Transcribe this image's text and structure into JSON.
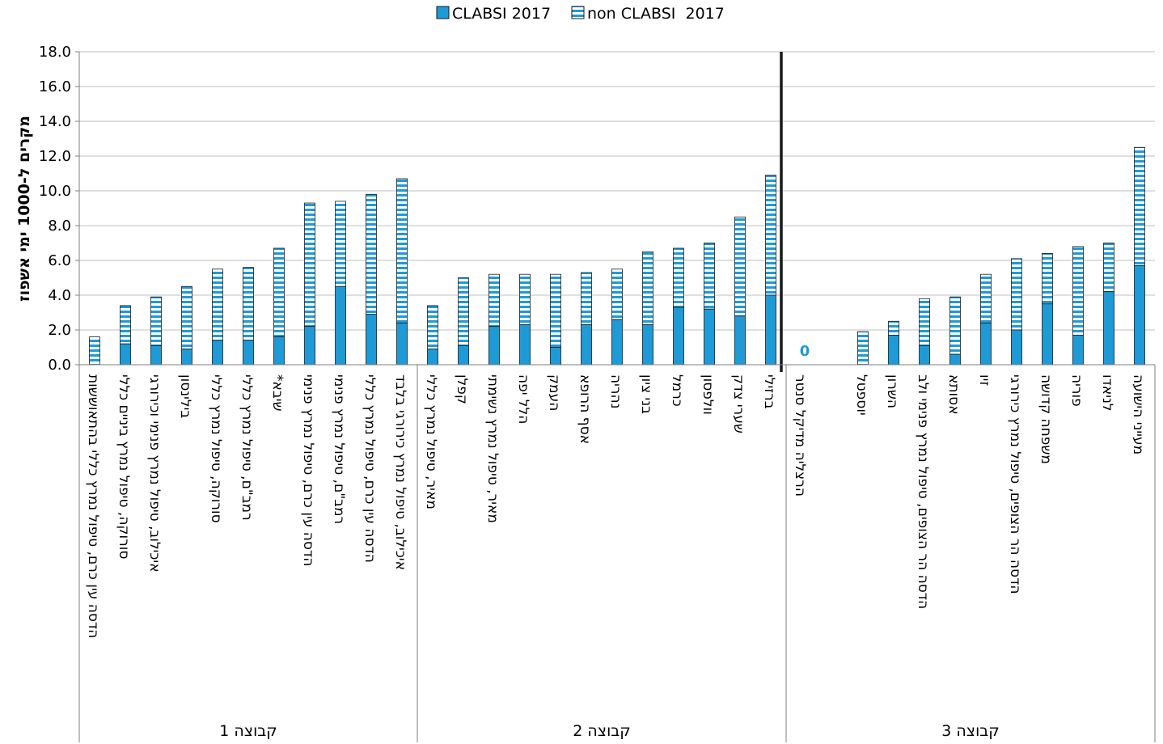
{
  "chart_data": {
    "type": "bar",
    "stacked": true,
    "ylabel": "מקרים ל-1000 ימי אשפוז",
    "ylim": [
      0,
      18
    ],
    "y_ticks": [
      "0.0",
      "2.0",
      "4.0",
      "6.0",
      "8.0",
      "10.0",
      "12.0",
      "14.0",
      "16.0",
      "18.0"
    ],
    "grid": true,
    "legend_position": "top",
    "colors": {
      "clabsi": "#1e9ad6",
      "non_clabsi_stripe": "#1e9ad6",
      "grid": "#bfbfbf",
      "divider": "#1a1a1a",
      "zero_label": "#1e9ad6"
    },
    "series": [
      {
        "name": "CLABSI 2017"
      },
      {
        "name": "non CLABSI  2017"
      }
    ],
    "groups": [
      {
        "label": "קבוצה 1",
        "categories": [
          {
            "name": "הדסה עין כרם, טיפול נמרץ כללי בהתאוששות",
            "clabsi": 0.0,
            "total": 1.6
          },
          {
            "name": "סורוקה, טיפול נמרץ ביניים כללי",
            "clabsi": 1.2,
            "total": 3.4
          },
          {
            "name": "איכילוב, טיפול נמרץ פנימי וכירורגי",
            "clabsi": 1.1,
            "total": 3.9
          },
          {
            "name": "בילינסון",
            "clabsi": 0.9,
            "total": 4.5
          },
          {
            "name": "סורוקה, טיפול נמרץ כללי",
            "clabsi": 1.4,
            "total": 5.5
          },
          {
            "name": "רמב\"ם, טיפול נמרץ כללי",
            "clabsi": 1.4,
            "total": 5.6
          },
          {
            "name": "שיבא*",
            "clabsi": 1.6,
            "total": 6.7
          },
          {
            "name": "הדסה עין כרם, טיפול נמרץ פנימי",
            "clabsi": 2.2,
            "total": 9.3
          },
          {
            "name": "רמב\"ם, טיפול נמרץ פנימי",
            "clabsi": 4.5,
            "total": 9.4
          },
          {
            "name": "הדסה עין כרם, טיפול נמרץ כללי",
            "clabsi": 2.9,
            "total": 9.8
          },
          {
            "name": "איכילוב, טיפול נמרץ כירורגי בלבד",
            "clabsi": 2.4,
            "total": 10.7
          }
        ]
      },
      {
        "label": "קבוצה 2",
        "categories": [
          {
            "name": "מאיר, טיפול נמרץ כללי",
            "clabsi": 0.9,
            "total": 3.4
          },
          {
            "name": "קפלן",
            "clabsi": 1.1,
            "total": 5.0
          },
          {
            "name": "מאיר, טיפול נמרץ נשימתי",
            "clabsi": 2.2,
            "total": 5.2
          },
          {
            "name": "הלל יפה",
            "clabsi": 2.3,
            "total": 5.2
          },
          {
            "name": "העמק",
            "clabsi": 1.0,
            "total": 5.2
          },
          {
            "name": "אסף הרופא",
            "clabsi": 2.3,
            "total": 5.3
          },
          {
            "name": "נהריה",
            "clabsi": 2.6,
            "total": 5.5
          },
          {
            "name": "בני ציון",
            "clabsi": 2.3,
            "total": 6.5
          },
          {
            "name": "כרמל",
            "clabsi": 3.3,
            "total": 6.7
          },
          {
            "name": "וולפסון",
            "clabsi": 3.2,
            "total": 7.0
          },
          {
            "name": "שערי צדק",
            "clabsi": 2.8,
            "total": 8.5
          },
          {
            "name": "ברזילי",
            "clabsi": 4.0,
            "total": 10.9
          }
        ]
      },
      {
        "label": "קבוצה 3",
        "categories": [
          {
            "name": "הרצליה מדיקל סנטר",
            "clabsi": 0.0,
            "total": 0.0,
            "annotation": "0"
          },
          {
            "name": "",
            "clabsi": 0.0,
            "total": 0.0
          },
          {
            "name": "יוספטל",
            "clabsi": 0.0,
            "total": 1.9
          },
          {
            "name": "השרון",
            "clabsi": 1.7,
            "total": 2.5
          },
          {
            "name": "הדסה הר הצופים, טיפול נמרץ פנימי ולב",
            "clabsi": 1.1,
            "total": 3.8
          },
          {
            "name": "אסותא",
            "clabsi": 0.6,
            "total": 3.9
          },
          {
            "name": "זיו",
            "clabsi": 2.4,
            "total": 5.2
          },
          {
            "name": "הדסה הר הצופים, טיפול נמרץ כירורגי",
            "clabsi": 2.0,
            "total": 6.1
          },
          {
            "name": "משפחה קדושה",
            "clabsi": 3.5,
            "total": 6.4
          },
          {
            "name": "פוריה",
            "clabsi": 1.7,
            "total": 6.8
          },
          {
            "name": "לניאדו",
            "clabsi": 4.2,
            "total": 7.0
          },
          {
            "name": "מעייני הישועה",
            "clabsi": 5.7,
            "total": 12.5
          }
        ]
      }
    ]
  }
}
